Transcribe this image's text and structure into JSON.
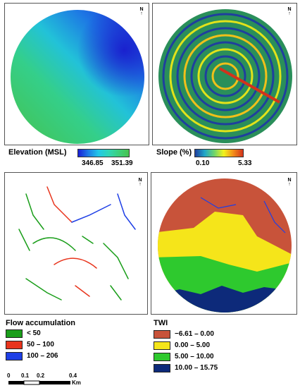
{
  "north_label": "N",
  "maps": {
    "elevation": {
      "title": "Elevation (MSL)",
      "min": "346.85",
      "max": "351.39",
      "ramp_colors": [
        "#1a1fd6",
        "#1e7be6",
        "#21c7e8",
        "#2fd6b6",
        "#3ccf7c",
        "#46c24e"
      ]
    },
    "slope": {
      "title": "Slope (%)",
      "min": "0.10",
      "max": "5.33",
      "ramp_colors": [
        "#1f3f9e",
        "#1fa6c9",
        "#6ed46b",
        "#f2f21a",
        "#f28b1a",
        "#d2331c"
      ]
    },
    "flow": {
      "title": "Flow accumulation",
      "classes": [
        {
          "label": "< 50",
          "color": "#1a9e1a"
        },
        {
          "label": "50 – 100",
          "color": "#e8341c"
        },
        {
          "label": "100 – 206",
          "color": "#1e3fe6"
        }
      ]
    },
    "twi": {
      "title": "TWI",
      "classes": [
        {
          "label": "−6.61 – 0.00",
          "color": "#c8533a"
        },
        {
          "label": "0.00 – 5.00",
          "color": "#f5e51a"
        },
        {
          "label": "5.00 – 10.00",
          "color": "#2ec92e"
        },
        {
          "label": "10.00 – 15.75",
          "color": "#0d2a7a"
        }
      ]
    }
  },
  "scale_bar": {
    "ticks": [
      "0",
      "0.1",
      "0.2",
      "0.4"
    ],
    "unit": "Km"
  }
}
